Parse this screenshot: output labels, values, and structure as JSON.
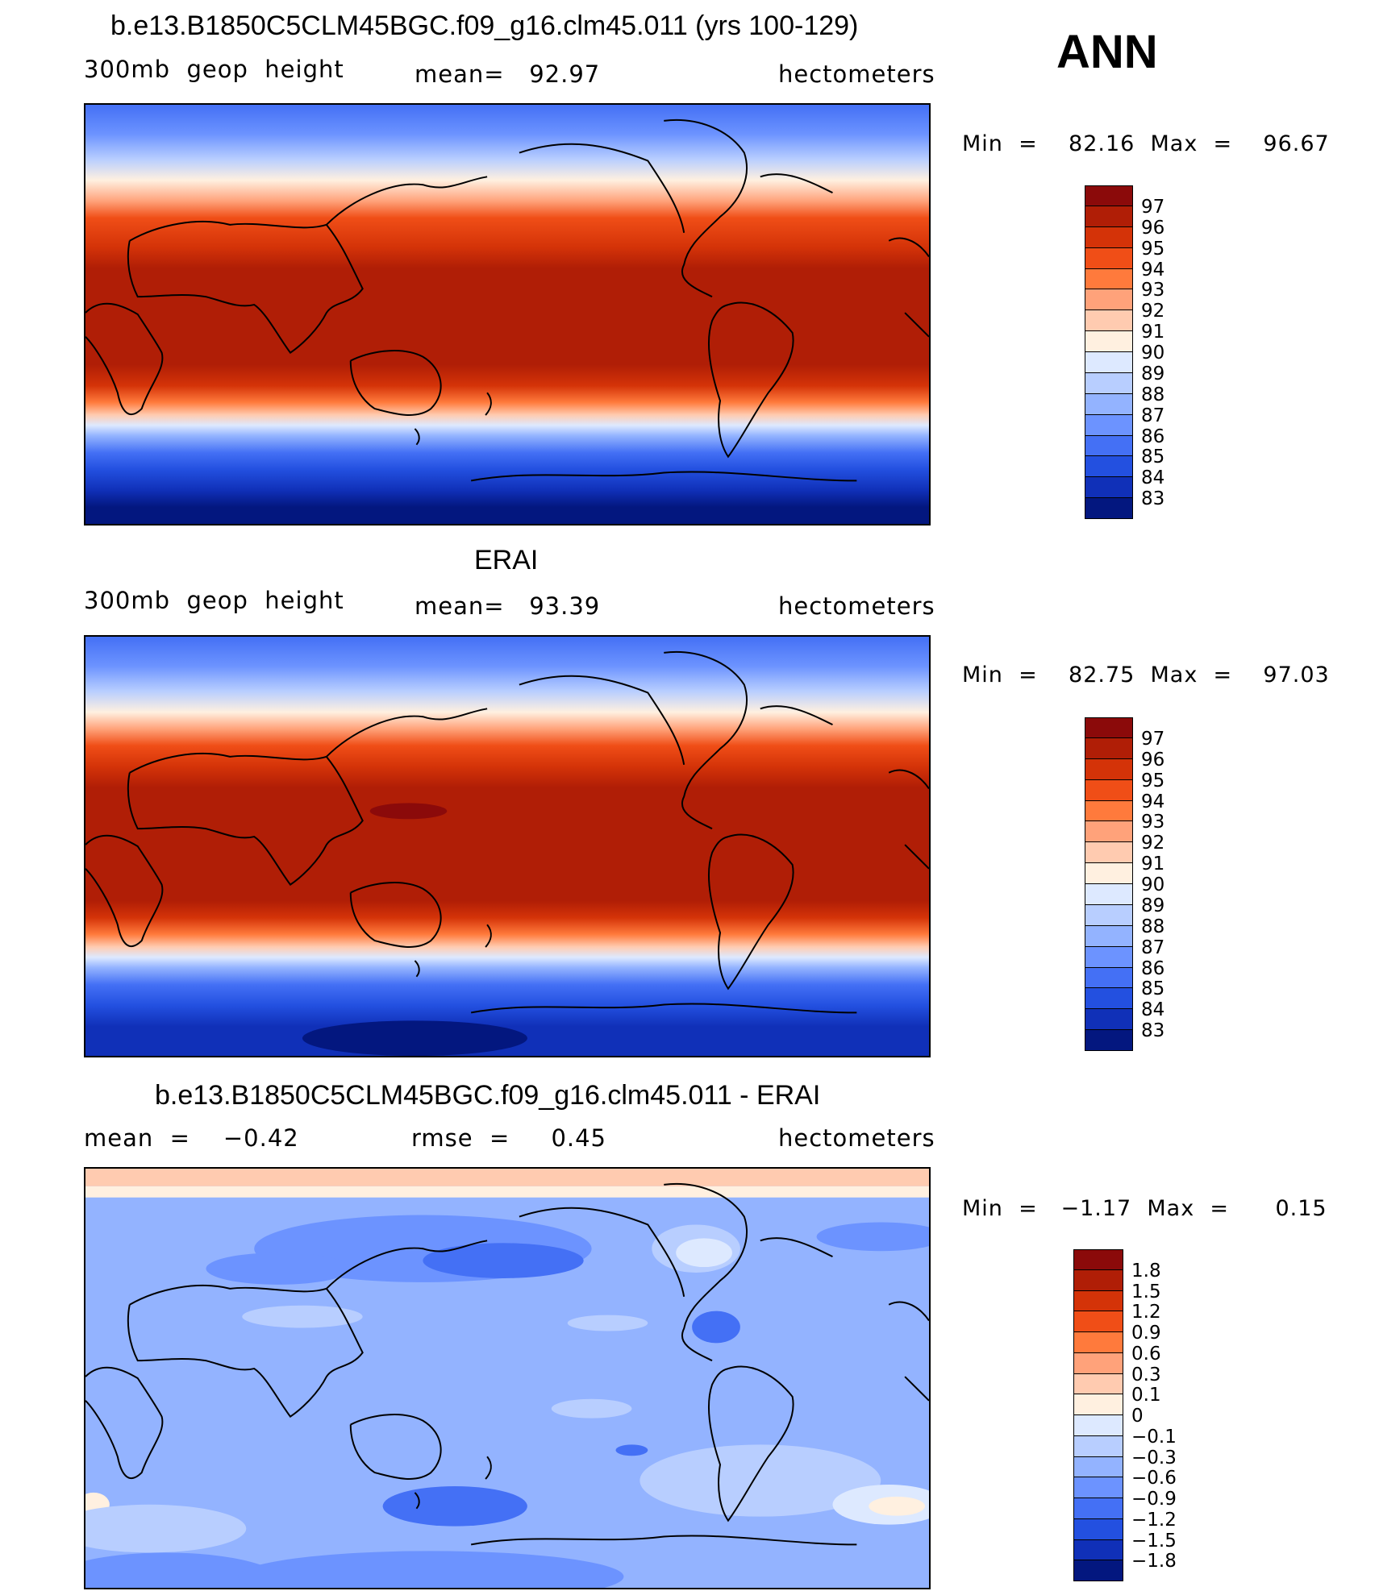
{
  "season": "ANN",
  "units_label": "hectometers",
  "panels": [
    {
      "title": "b.e13.B1850C5CLM45BGC.f09_g16.clm45.011 (yrs 100-129)",
      "left_label": "300mb  geop  height",
      "center_label": "mean=   92.97",
      "right_label": "hectometers",
      "minmax": "Min  =    82.16  Max  =    96.67",
      "colorbar_labels": [
        "97",
        "96",
        "95",
        "94",
        "93",
        "92",
        "91",
        "90",
        "89",
        "88",
        "87",
        "86",
        "85",
        "84",
        "83"
      ],
      "colorbar_colors": [
        "#8b0a0a",
        "#b01e06",
        "#d43308",
        "#f04e17",
        "#ff7a3c",
        "#ffa27a",
        "#ffcbb0",
        "#fff0e0",
        "#dde9ff",
        "#b8ceff",
        "#93b3ff",
        "#6c93ff",
        "#4470f5",
        "#2350e0",
        "#1030b8",
        "#03177f"
      ]
    },
    {
      "title": "ERAI",
      "left_label": "300mb  geop  height",
      "center_label": "mean=   93.39",
      "right_label": "hectometers",
      "minmax": "Min  =    82.75  Max  =    97.03",
      "colorbar_labels": [
        "97",
        "96",
        "95",
        "94",
        "93",
        "92",
        "91",
        "90",
        "89",
        "88",
        "87",
        "86",
        "85",
        "84",
        "83"
      ],
      "colorbar_colors": [
        "#8b0a0a",
        "#b01e06",
        "#d43308",
        "#f04e17",
        "#ff7a3c",
        "#ffa27a",
        "#ffcbb0",
        "#fff0e0",
        "#dde9ff",
        "#b8ceff",
        "#93b3ff",
        "#6c93ff",
        "#4470f5",
        "#2350e0",
        "#1030b8",
        "#03177f"
      ]
    },
    {
      "title": "b.e13.B1850C5CLM45BGC.f09_g16.clm45.011 - ERAI",
      "left_label": "mean  =    −0.42",
      "center_label": "rmse  =     0.45",
      "right_label": "hectometers",
      "minmax": "Min  =   −1.17  Max  =      0.15",
      "colorbar_labels": [
        "1.8",
        "1.5",
        "1.2",
        "0.9",
        "0.6",
        "0.3",
        "0.1",
        "0",
        "−0.1",
        "−0.3",
        "−0.6",
        "−0.9",
        "−1.2",
        "−1.5",
        "−1.8"
      ],
      "colorbar_colors": [
        "#8b0a0a",
        "#b01e06",
        "#d43308",
        "#f04e17",
        "#ff7a3c",
        "#ffa27a",
        "#ffcbb0",
        "#fff0e0",
        "#dde9ff",
        "#b8ceff",
        "#93b3ff",
        "#6c93ff",
        "#4470f5",
        "#2350e0",
        "#1030b8",
        "#03177f"
      ]
    }
  ]
}
